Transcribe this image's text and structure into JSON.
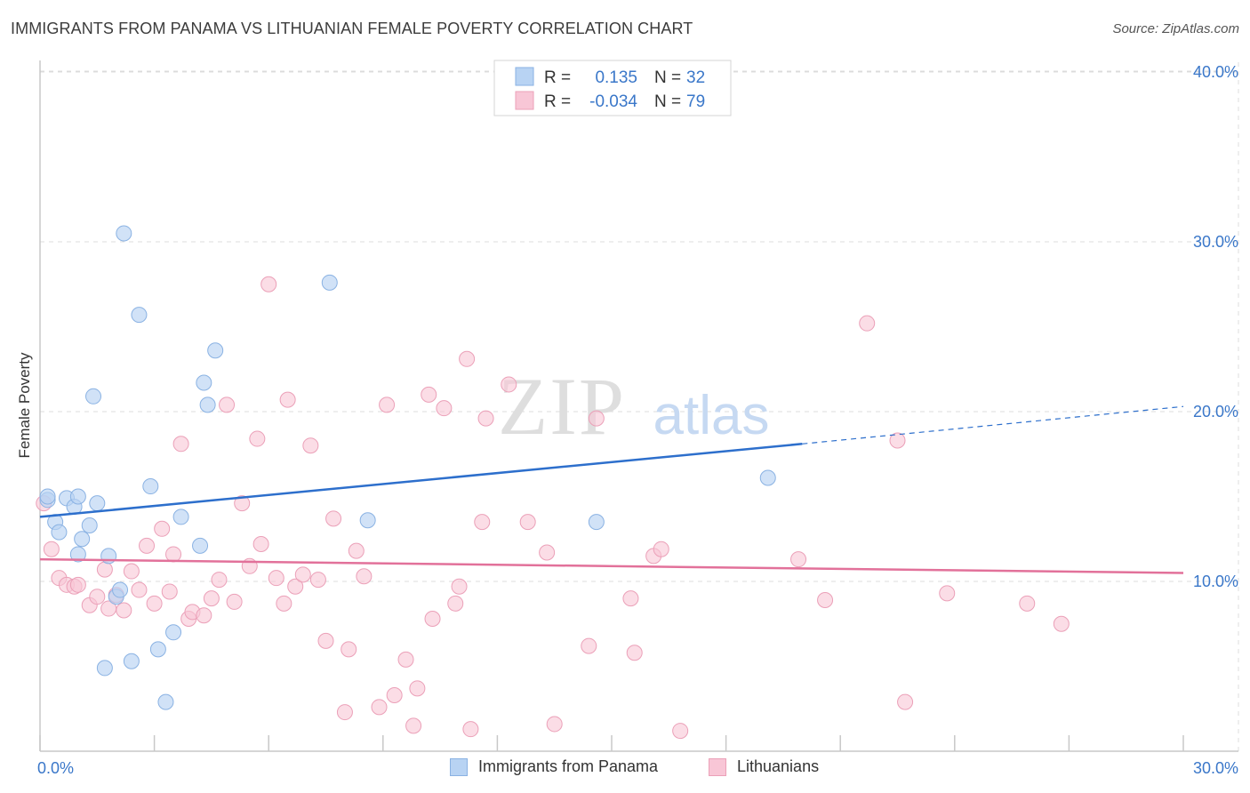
{
  "header": {
    "title": "IMMIGRANTS FROM PANAMA VS LITHUANIAN FEMALE POVERTY CORRELATION CHART",
    "source": "Source: ZipAtlas.com"
  },
  "watermark": {
    "zip": "ZIP",
    "atlas": "atlas"
  },
  "colors": {
    "blue_fill": "#b8d3f3",
    "blue_stroke": "#8ab2e3",
    "blue_line": "#2d6fcc",
    "pink_fill": "#f8c6d6",
    "pink_stroke": "#eba0b8",
    "pink_line": "#e2719a",
    "axis_text": "#3a77c9",
    "grid": "#dcdcdc"
  },
  "chart_data": {
    "type": "scatter",
    "title": "IMMIGRANTS FROM PANAMA VS LITHUANIAN FEMALE POVERTY CORRELATION CHART",
    "xlabel": "",
    "ylabel": "Female Poverty",
    "xlim": [
      0,
      30
    ],
    "ylim": [
      0,
      40
    ],
    "x_tick_labels": [
      "0.0%",
      "30.0%"
    ],
    "y_ticks": [
      10,
      20,
      30,
      40
    ],
    "y_tick_labels": [
      "10.0%",
      "20.0%",
      "30.0%",
      "40.0%"
    ],
    "grid": true,
    "legend_stats": [
      {
        "r_label": "R =",
        "r_value": "0.135",
        "n_label": "N =",
        "n_value": "32"
      },
      {
        "r_label": "R =",
        "r_value": "-0.034",
        "n_label": "N =",
        "n_value": "79"
      }
    ],
    "series": [
      {
        "name": "Immigrants from Panama",
        "color": "#b8d3f3",
        "trend": {
          "x0": 0,
          "y0": 13.8,
          "x1": 20,
          "y1": 18.1,
          "dashed_to_x": 30,
          "dashed_to_y": 20.3
        },
        "points": [
          {
            "x": 0.2,
            "y": 14.8
          },
          {
            "x": 0.4,
            "y": 13.5
          },
          {
            "x": 0.5,
            "y": 12.9
          },
          {
            "x": 0.7,
            "y": 14.9
          },
          {
            "x": 0.9,
            "y": 14.4
          },
          {
            "x": 1.0,
            "y": 11.6
          },
          {
            "x": 1.1,
            "y": 12.5
          },
          {
            "x": 1.3,
            "y": 13.3
          },
          {
            "x": 1.4,
            "y": 20.9
          },
          {
            "x": 1.5,
            "y": 14.6
          },
          {
            "x": 1.7,
            "y": 4.9
          },
          {
            "x": 1.8,
            "y": 11.5
          },
          {
            "x": 2.0,
            "y": 9.1
          },
          {
            "x": 2.1,
            "y": 9.5
          },
          {
            "x": 2.2,
            "y": 30.5
          },
          {
            "x": 2.4,
            "y": 5.3
          },
          {
            "x": 2.6,
            "y": 25.7
          },
          {
            "x": 2.9,
            "y": 15.6
          },
          {
            "x": 3.1,
            "y": 6.0
          },
          {
            "x": 3.3,
            "y": 2.9
          },
          {
            "x": 3.5,
            "y": 7.0
          },
          {
            "x": 3.7,
            "y": 13.8
          },
          {
            "x": 4.2,
            "y": 12.1
          },
          {
            "x": 4.3,
            "y": 21.7
          },
          {
            "x": 4.4,
            "y": 20.4
          },
          {
            "x": 4.6,
            "y": 23.6
          },
          {
            "x": 7.6,
            "y": 27.6
          },
          {
            "x": 8.6,
            "y": 13.6
          },
          {
            "x": 14.6,
            "y": 13.5
          },
          {
            "x": 19.1,
            "y": 16.1
          },
          {
            "x": 0.2,
            "y": 15.0
          },
          {
            "x": 1.0,
            "y": 15.0
          }
        ]
      },
      {
        "name": "Lithuanians",
        "color": "#f8c6d6",
        "trend": {
          "x0": 0,
          "y0": 11.3,
          "x1": 30,
          "y1": 10.5
        },
        "points": [
          {
            "x": 0.1,
            "y": 14.6
          },
          {
            "x": 0.3,
            "y": 11.9
          },
          {
            "x": 0.5,
            "y": 10.2
          },
          {
            "x": 0.7,
            "y": 9.8
          },
          {
            "x": 0.9,
            "y": 9.7
          },
          {
            "x": 1.0,
            "y": 9.8
          },
          {
            "x": 1.3,
            "y": 8.6
          },
          {
            "x": 1.5,
            "y": 9.1
          },
          {
            "x": 1.7,
            "y": 10.7
          },
          {
            "x": 1.8,
            "y": 8.4
          },
          {
            "x": 2.0,
            "y": 9.2
          },
          {
            "x": 2.2,
            "y": 8.3
          },
          {
            "x": 2.4,
            "y": 10.6
          },
          {
            "x": 2.6,
            "y": 9.5
          },
          {
            "x": 2.8,
            "y": 12.1
          },
          {
            "x": 3.0,
            "y": 8.7
          },
          {
            "x": 3.2,
            "y": 13.1
          },
          {
            "x": 3.4,
            "y": 9.4
          },
          {
            "x": 3.5,
            "y": 11.6
          },
          {
            "x": 3.7,
            "y": 18.1
          },
          {
            "x": 3.9,
            "y": 7.8
          },
          {
            "x": 4.0,
            "y": 8.2
          },
          {
            "x": 4.3,
            "y": 8.0
          },
          {
            "x": 4.5,
            "y": 9.0
          },
          {
            "x": 4.7,
            "y": 10.1
          },
          {
            "x": 4.9,
            "y": 20.4
          },
          {
            "x": 5.1,
            "y": 8.8
          },
          {
            "x": 5.3,
            "y": 14.6
          },
          {
            "x": 5.5,
            "y": 10.9
          },
          {
            "x": 5.7,
            "y": 18.4
          },
          {
            "x": 5.8,
            "y": 12.2
          },
          {
            "x": 6.0,
            "y": 27.5
          },
          {
            "x": 6.2,
            "y": 10.2
          },
          {
            "x": 6.4,
            "y": 8.7
          },
          {
            "x": 6.5,
            "y": 20.7
          },
          {
            "x": 6.7,
            "y": 9.7
          },
          {
            "x": 6.9,
            "y": 10.4
          },
          {
            "x": 7.1,
            "y": 18.0
          },
          {
            "x": 7.3,
            "y": 10.1
          },
          {
            "x": 7.5,
            "y": 6.5
          },
          {
            "x": 7.7,
            "y": 13.7
          },
          {
            "x": 8.0,
            "y": 2.3
          },
          {
            "x": 8.1,
            "y": 6.0
          },
          {
            "x": 8.3,
            "y": 11.8
          },
          {
            "x": 8.5,
            "y": 10.3
          },
          {
            "x": 8.9,
            "y": 2.6
          },
          {
            "x": 9.1,
            "y": 20.4
          },
          {
            "x": 9.3,
            "y": 3.3
          },
          {
            "x": 9.6,
            "y": 5.4
          },
          {
            "x": 9.8,
            "y": 1.5
          },
          {
            "x": 9.9,
            "y": 3.7
          },
          {
            "x": 10.2,
            "y": 21.0
          },
          {
            "x": 10.3,
            "y": 7.8
          },
          {
            "x": 10.6,
            "y": 20.2
          },
          {
            "x": 10.9,
            "y": 8.7
          },
          {
            "x": 11.0,
            "y": 9.7
          },
          {
            "x": 11.2,
            "y": 23.1
          },
          {
            "x": 11.3,
            "y": 1.3
          },
          {
            "x": 11.6,
            "y": 13.5
          },
          {
            "x": 11.7,
            "y": 19.6
          },
          {
            "x": 12.3,
            "y": 21.6
          },
          {
            "x": 12.8,
            "y": 13.5
          },
          {
            "x": 13.3,
            "y": 11.7
          },
          {
            "x": 13.5,
            "y": 1.6
          },
          {
            "x": 14.4,
            "y": 6.2
          },
          {
            "x": 14.6,
            "y": 19.6
          },
          {
            "x": 15.5,
            "y": 9.0
          },
          {
            "x": 15.6,
            "y": 5.8
          },
          {
            "x": 16.1,
            "y": 11.5
          },
          {
            "x": 16.3,
            "y": 11.9
          },
          {
            "x": 16.8,
            "y": 1.2
          },
          {
            "x": 19.9,
            "y": 11.3
          },
          {
            "x": 20.6,
            "y": 8.9
          },
          {
            "x": 21.7,
            "y": 25.2
          },
          {
            "x": 22.5,
            "y": 18.3
          },
          {
            "x": 22.7,
            "y": 2.9
          },
          {
            "x": 23.8,
            "y": 9.3
          },
          {
            "x": 25.9,
            "y": 8.7
          },
          {
            "x": 26.8,
            "y": 7.5
          }
        ]
      }
    ]
  }
}
